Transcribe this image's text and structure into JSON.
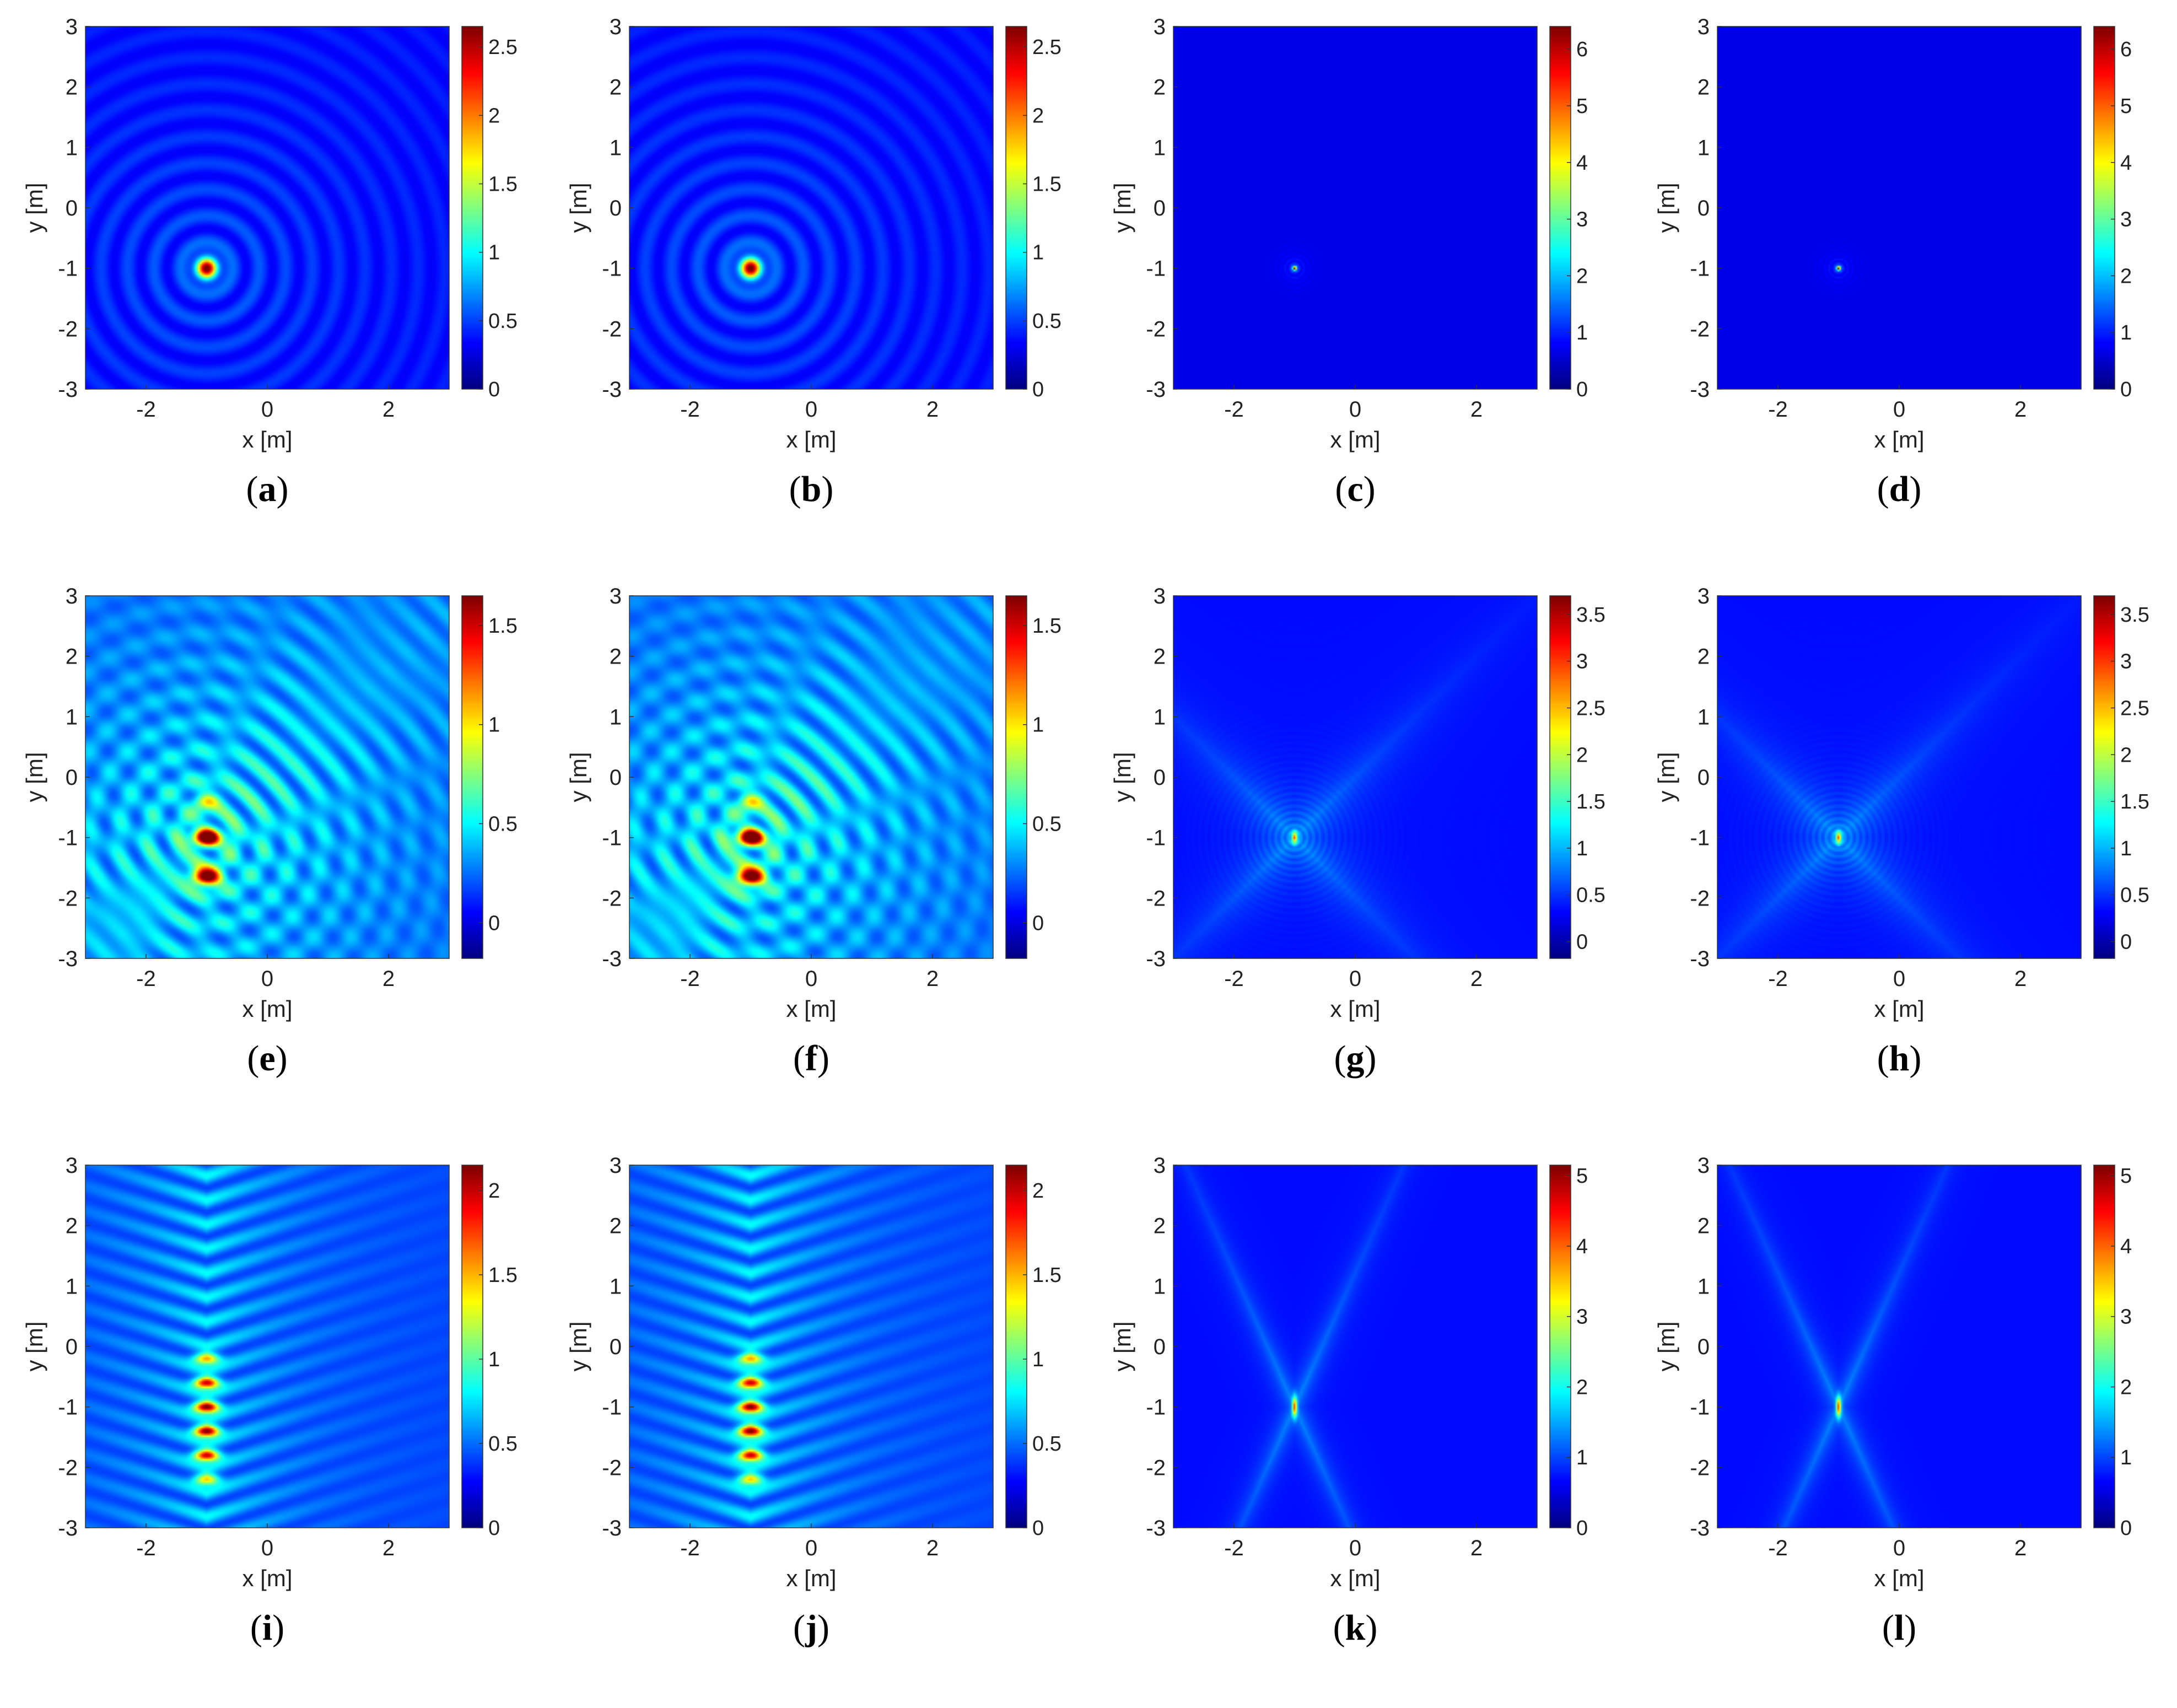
{
  "chart_data": [
    {
      "id": "a",
      "type": "heatmap",
      "caption": "a",
      "xlabel": "x [m]",
      "ylabel": "y [m]",
      "xlim": [
        -3,
        3
      ],
      "ylim": [
        -3,
        3
      ],
      "xticks": [
        "-2",
        "0",
        "2"
      ],
      "yticks": [
        "3",
        "2",
        "1",
        "0",
        "-1",
        "-2",
        "-3"
      ],
      "colorbar": {
        "min": 0,
        "max": 2.65,
        "ticks": [
          "0",
          "0.5",
          "1",
          "1.5",
          "2",
          "2.5"
        ]
      },
      "pattern": "rings",
      "source": [
        -1,
        -1
      ],
      "extent": "wide"
    },
    {
      "id": "b",
      "type": "heatmap",
      "caption": "b",
      "xlabel": "x [m]",
      "ylabel": "y [m]",
      "xlim": [
        -3,
        3
      ],
      "ylim": [
        -3,
        3
      ],
      "xticks": [
        "-2",
        "0",
        "2"
      ],
      "yticks": [
        "3",
        "2",
        "1",
        "0",
        "-1",
        "-2",
        "-3"
      ],
      "colorbar": {
        "min": 0,
        "max": 2.65,
        "ticks": [
          "0",
          "0.5",
          "1",
          "1.5",
          "2",
          "2.5"
        ]
      },
      "pattern": "rings",
      "source": [
        -1,
        -1
      ],
      "extent": "wide"
    },
    {
      "id": "c",
      "type": "heatmap",
      "caption": "c",
      "xlabel": "x [m]",
      "ylabel": "y [m]",
      "xlim": [
        -3,
        3
      ],
      "ylim": [
        -3,
        3
      ],
      "xticks": [
        "-2",
        "0",
        "2"
      ],
      "yticks": [
        "3",
        "2",
        "1",
        "0",
        "-1",
        "-2",
        "-3"
      ],
      "colorbar": {
        "min": 0,
        "max": 6.4,
        "ticks": [
          "0",
          "1",
          "2",
          "3",
          "4",
          "5",
          "6"
        ]
      },
      "pattern": "rings",
      "source": [
        -1,
        -1
      ],
      "extent": "narrow"
    },
    {
      "id": "d",
      "type": "heatmap",
      "caption": "d",
      "xlabel": "x [m]",
      "ylabel": "y [m]",
      "xlim": [
        -3,
        3
      ],
      "ylim": [
        -3,
        3
      ],
      "xticks": [
        "-2",
        "0",
        "2"
      ],
      "yticks": [
        "3",
        "2",
        "1",
        "0",
        "-1",
        "-2",
        "-3"
      ],
      "colorbar": {
        "min": 0,
        "max": 6.4,
        "ticks": [
          "0",
          "1",
          "2",
          "3",
          "4",
          "5",
          "6"
        ]
      },
      "pattern": "rings",
      "source": [
        -1,
        -1
      ],
      "extent": "narrow"
    },
    {
      "id": "e",
      "type": "heatmap",
      "caption": "e",
      "xlabel": "x [m]",
      "ylabel": "y [m]",
      "xlim": [
        -3,
        3
      ],
      "ylim": [
        -3,
        3
      ],
      "xticks": [
        "-2",
        "0",
        "2"
      ],
      "yticks": [
        "3",
        "2",
        "1",
        "0",
        "-1",
        "-2",
        "-3"
      ],
      "colorbar": {
        "min": -0.18,
        "max": 1.65,
        "ticks": [
          "0",
          "0.5",
          "1",
          "1.5"
        ]
      },
      "pattern": "pair",
      "source": [
        -1,
        -1
      ],
      "extent": "wide"
    },
    {
      "id": "f",
      "type": "heatmap",
      "caption": "f",
      "xlabel": "x [m]",
      "ylabel": "y [m]",
      "xlim": [
        -3,
        3
      ],
      "ylim": [
        -3,
        3
      ],
      "xticks": [
        "-2",
        "0",
        "2"
      ],
      "yticks": [
        "3",
        "2",
        "1",
        "0",
        "-1",
        "-2",
        "-3"
      ],
      "colorbar": {
        "min": -0.18,
        "max": 1.65,
        "ticks": [
          "0",
          "0.5",
          "1",
          "1.5"
        ]
      },
      "pattern": "pair",
      "source": [
        -1,
        -1
      ],
      "extent": "wide"
    },
    {
      "id": "g",
      "type": "heatmap",
      "caption": "g",
      "xlabel": "x [m]",
      "ylabel": "y [m]",
      "xlim": [
        -3,
        3
      ],
      "ylim": [
        -3,
        3
      ],
      "xticks": [
        "-2",
        "0",
        "2"
      ],
      "yticks": [
        "3",
        "2",
        "1",
        "0",
        "-1",
        "-2",
        "-3"
      ],
      "colorbar": {
        "min": -0.18,
        "max": 3.7,
        "ticks": [
          "0",
          "0.5",
          "1",
          "1.5",
          "2",
          "2.5",
          "3",
          "3.5"
        ]
      },
      "pattern": "cross",
      "source": [
        -1,
        -1
      ],
      "extent": "narrow"
    },
    {
      "id": "h",
      "type": "heatmap",
      "caption": "h",
      "xlabel": "x [m]",
      "ylabel": "y [m]",
      "xlim": [
        -3,
        3
      ],
      "ylim": [
        -3,
        3
      ],
      "xticks": [
        "-2",
        "0",
        "2"
      ],
      "yticks": [
        "3",
        "2",
        "1",
        "0",
        "-1",
        "-2",
        "-3"
      ],
      "colorbar": {
        "min": -0.18,
        "max": 3.7,
        "ticks": [
          "0",
          "0.5",
          "1",
          "1.5",
          "2",
          "2.5",
          "3",
          "3.5"
        ]
      },
      "pattern": "cross",
      "source": [
        -1,
        -1
      ],
      "extent": "narrow"
    },
    {
      "id": "i",
      "type": "heatmap",
      "caption": "i",
      "xlabel": "x [m]",
      "ylabel": "y [m]",
      "xlim": [
        -3,
        3
      ],
      "ylim": [
        -3,
        3
      ],
      "xticks": [
        "-2",
        "0",
        "2"
      ],
      "yticks": [
        "3",
        "2",
        "1",
        "0",
        "-1",
        "-2",
        "-3"
      ],
      "colorbar": {
        "min": 0,
        "max": 2.15,
        "ticks": [
          "0",
          "0.5",
          "1",
          "1.5",
          "2"
        ]
      },
      "pattern": "column",
      "source": [
        -1,
        -1
      ],
      "extent": "wide"
    },
    {
      "id": "j",
      "type": "heatmap",
      "caption": "j",
      "xlabel": "x [m]",
      "ylabel": "y [m]",
      "xlim": [
        -3,
        3
      ],
      "ylim": [
        -3,
        3
      ],
      "xticks": [
        "-2",
        "0",
        "2"
      ],
      "yticks": [
        "3",
        "2",
        "1",
        "0",
        "-1",
        "-2",
        "-3"
      ],
      "colorbar": {
        "min": 0,
        "max": 2.15,
        "ticks": [
          "0",
          "0.5",
          "1",
          "1.5",
          "2"
        ]
      },
      "pattern": "column",
      "source": [
        -1,
        -1
      ],
      "extent": "wide"
    },
    {
      "id": "k",
      "type": "heatmap",
      "caption": "k",
      "xlabel": "x [m]",
      "ylabel": "y [m]",
      "xlim": [
        -3,
        3
      ],
      "ylim": [
        -3,
        3
      ],
      "xticks": [
        "-2",
        "0",
        "2"
      ],
      "yticks": [
        "3",
        "2",
        "1",
        "0",
        "-1",
        "-2",
        "-3"
      ],
      "colorbar": {
        "min": 0,
        "max": 5.15,
        "ticks": [
          "0",
          "1",
          "2",
          "3",
          "4",
          "5"
        ]
      },
      "pattern": "xcross",
      "source": [
        -1,
        -1
      ],
      "extent": "narrow"
    },
    {
      "id": "l",
      "type": "heatmap",
      "caption": "l",
      "xlabel": "x [m]",
      "ylabel": "y [m]",
      "xlim": [
        -3,
        3
      ],
      "ylim": [
        -3,
        3
      ],
      "xticks": [
        "-2",
        "0",
        "2"
      ],
      "yticks": [
        "3",
        "2",
        "1",
        "0",
        "-1",
        "-2",
        "-3"
      ],
      "colorbar": {
        "min": 0,
        "max": 5.15,
        "ticks": [
          "0",
          "1",
          "2",
          "3",
          "4",
          "5"
        ]
      },
      "pattern": "xcross",
      "source": [
        -1,
        -1
      ],
      "extent": "narrow"
    }
  ],
  "colors": {
    "background": "#00008f",
    "colormap": "jet"
  }
}
